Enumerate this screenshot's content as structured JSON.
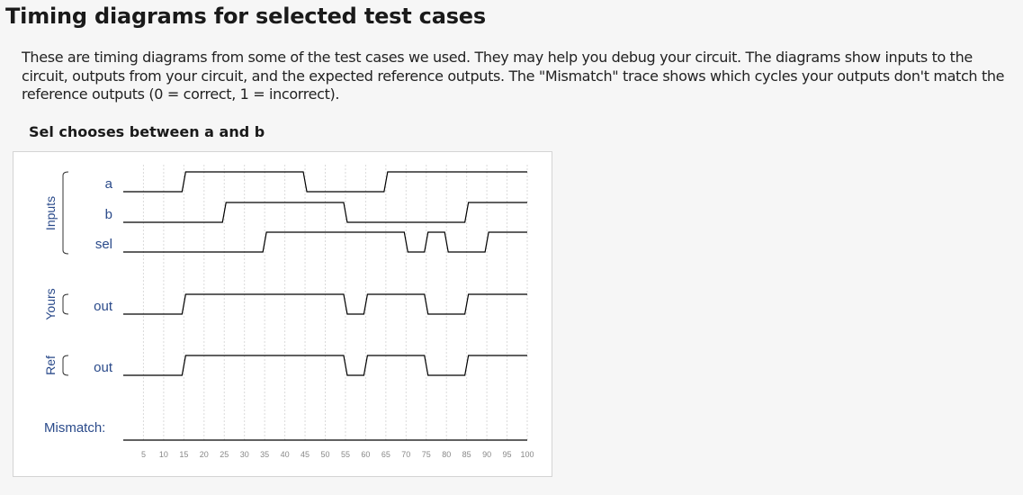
{
  "page": {
    "title": "Timing diagrams for selected test cases",
    "intro": "These are timing diagrams from some of the test cases we used. They may help you debug your circuit. The diagrams show inputs to the circuit, outputs from your circuit, and the expected reference outputs. The \"Mismatch\" trace shows which cycles your outputs don't match the reference outputs (0 = correct, 1 = incorrect).",
    "test_case_title": "Sel chooses between a and b"
  },
  "diagram": {
    "groups": [
      {
        "label": "Inputs",
        "signals": [
          "a",
          "b",
          "sel"
        ]
      },
      {
        "label": "Yours",
        "signals": [
          "out"
        ]
      },
      {
        "label": "Ref",
        "signals": [
          "out"
        ]
      }
    ],
    "mismatch_label": "Mismatch:",
    "time_ticks": [
      "5",
      "10",
      "15",
      "20",
      "25",
      "30",
      "35",
      "40",
      "45",
      "50",
      "55",
      "60",
      "65",
      "70",
      "75",
      "80",
      "85",
      "90",
      "95",
      "100"
    ],
    "signals": [
      {
        "id": "in-a",
        "name": "a",
        "group": "Inputs",
        "changes": [
          [
            0,
            0
          ],
          [
            15,
            1
          ],
          [
            45,
            0
          ],
          [
            65,
            1
          ]
        ]
      },
      {
        "id": "in-b",
        "name": "b",
        "group": "Inputs",
        "changes": [
          [
            0,
            0
          ],
          [
            25,
            1
          ],
          [
            55,
            0
          ],
          [
            85,
            1
          ]
        ]
      },
      {
        "id": "in-sel",
        "name": "sel",
        "group": "Inputs",
        "changes": [
          [
            0,
            0
          ],
          [
            35,
            1
          ],
          [
            70,
            0
          ],
          [
            75,
            1
          ],
          [
            80,
            0
          ],
          [
            90,
            1
          ]
        ]
      },
      {
        "id": "yours-out",
        "name": "out",
        "group": "Yours",
        "changes": [
          [
            0,
            0
          ],
          [
            15,
            1
          ],
          [
            55,
            0
          ],
          [
            60,
            1
          ],
          [
            75,
            0
          ],
          [
            85,
            1
          ]
        ]
      },
      {
        "id": "ref-out",
        "name": "out",
        "group": "Ref",
        "changes": [
          [
            0,
            0
          ],
          [
            15,
            1
          ],
          [
            55,
            0
          ],
          [
            60,
            1
          ],
          [
            75,
            0
          ],
          [
            85,
            1
          ]
        ]
      },
      {
        "id": "mismatch",
        "name": "Mismatch:",
        "group": "",
        "changes": [
          [
            0,
            0
          ]
        ]
      }
    ]
  }
}
